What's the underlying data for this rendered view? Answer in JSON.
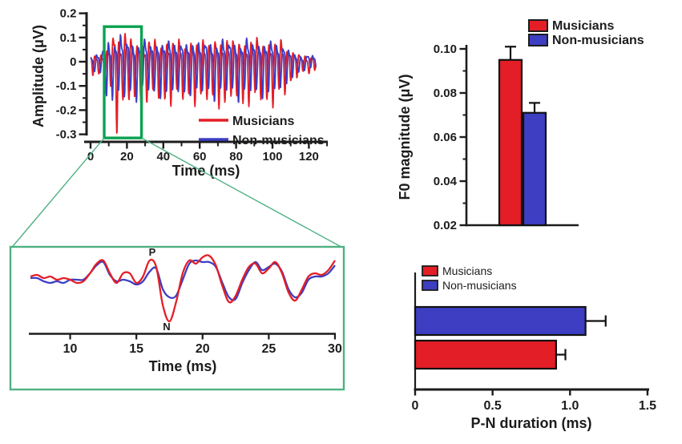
{
  "figure": {
    "background": "#ffffff",
    "description": "Auditory brainstem response figure comparing Musicians and Non-musicians"
  },
  "colors": {
    "musicians": "#e41e26",
    "non_musicians": "#3d3ec2",
    "axis": "#1c1c1c",
    "highlight_green": "#0ba24f",
    "inset_green": "#4eb182"
  },
  "chart_data": [
    {
      "id": "ffr_waveform",
      "type": "line",
      "xlabel": "Time (ms)",
      "ylabel": "Amplitude (μV)",
      "xlim": [
        0,
        130
      ],
      "ylim": [
        -0.3,
        0.2
      ],
      "xticks": {
        "values": [
          0,
          20,
          40,
          60,
          80,
          100,
          120
        ],
        "labels": [
          "0",
          "20",
          "40",
          "60",
          "80",
          "100",
          "120"
        ],
        "minor_values": [
          10,
          30,
          50,
          70,
          90,
          110,
          130
        ]
      },
      "yticks": {
        "values": [
          0.2,
          0.1,
          0,
          -0.1,
          -0.2,
          -0.3
        ],
        "labels": [
          "0.2",
          "0.1",
          "0",
          "-0.1",
          "-0.2",
          "-0.3"
        ],
        "minor_values": [
          0.15,
          0.05,
          -0.05,
          -0.15,
          -0.25
        ]
      },
      "legend": [
        "Musicians",
        "Non-musicians"
      ],
      "legend_position": "inside-bottom-right",
      "highlight_box_ms": {
        "t0": 7.5,
        "t1": 28,
        "v0": -0.315,
        "v1": 0.145
      },
      "sample_step_ms": 0.2,
      "x_end_ms": 124,
      "series": [
        {
          "name": "Musicians",
          "color_key": "musicians",
          "period_ms": 3.3,
          "phase_ms": 2.0,
          "h2": 0.45,
          "neg_bias": 1.3,
          "seed": 1.7,
          "envelope": [
            [
              0,
              0.032
            ],
            [
              6,
              0.038
            ],
            [
              7.5,
              0.05
            ],
            [
              8.5,
              0.07
            ],
            [
              10,
              0.06
            ],
            [
              11.5,
              0.09
            ],
            [
              12.7,
              0.15
            ],
            [
              13.6,
              0.19
            ],
            [
              14.5,
              0.17
            ],
            [
              16,
              0.11
            ],
            [
              17.5,
              0.1
            ],
            [
              19,
              0.14
            ],
            [
              20.5,
              0.13
            ],
            [
              22,
              0.12
            ],
            [
              24,
              0.105
            ],
            [
              28,
              0.1
            ],
            [
              40,
              0.105
            ],
            [
              55,
              0.1
            ],
            [
              70,
              0.11
            ],
            [
              85,
              0.105
            ],
            [
              95,
              0.11
            ],
            [
              103,
              0.1
            ],
            [
              107,
              0.09
            ],
            [
              110,
              0.06
            ],
            [
              113,
              0.04
            ],
            [
              117,
              0.03
            ],
            [
              124,
              0.03
            ]
          ]
        },
        {
          "name": "Non-musicians",
          "color_key": "non_musicians",
          "period_ms": 3.3,
          "phase_ms": 2.85,
          "h2": 0.4,
          "neg_bias": 1.15,
          "seed": 4.2,
          "envelope": [
            [
              0,
              0.03
            ],
            [
              6,
              0.04
            ],
            [
              7.5,
              0.08
            ],
            [
              8.8,
              0.12
            ],
            [
              10,
              0.11
            ],
            [
              11.5,
              0.09
            ],
            [
              13,
              0.1
            ],
            [
              14.5,
              0.11
            ],
            [
              16,
              0.12
            ],
            [
              17.5,
              0.11
            ],
            [
              19,
              0.12
            ],
            [
              20.5,
              0.11
            ],
            [
              22,
              0.1
            ],
            [
              24,
              0.1
            ],
            [
              28,
              0.095
            ],
            [
              40,
              0.1
            ],
            [
              55,
              0.095
            ],
            [
              70,
              0.1
            ],
            [
              85,
              0.1
            ],
            [
              95,
              0.1
            ],
            [
              103,
              0.09
            ],
            [
              107,
              0.08
            ],
            [
              110,
              0.05
            ],
            [
              113,
              0.035
            ],
            [
              117,
              0.028
            ],
            [
              124,
              0.028
            ]
          ]
        }
      ]
    },
    {
      "id": "inset_zoom",
      "type": "line",
      "xlabel": "Time (ms)",
      "xlim": [
        7,
        30
      ],
      "xticks": {
        "values": [
          10,
          15,
          20,
          25,
          30
        ],
        "labels": [
          "10",
          "15",
          "20",
          "25",
          "30"
        ]
      },
      "t_start": 7,
      "t_step": 0.5,
      "annotations": [
        {
          "text": "P",
          "t": 16.2
        },
        {
          "text": "N",
          "t": 17.3
        }
      ],
      "series": [
        {
          "name": "Non-musicians",
          "color_key": "non_musicians",
          "values": [
            -0.01,
            -0.01,
            -0.03,
            -0.04,
            -0.03,
            -0.04,
            -0.02,
            -0.02,
            -0.02,
            0.02,
            0.07,
            0.09,
            0.01,
            -0.03,
            -0.02,
            -0.03,
            -0.05,
            -0.03,
            0.03,
            0.05,
            -0.08,
            -0.13,
            -0.12,
            -0.02,
            0.08,
            0.1,
            0.09,
            0.09,
            0.06,
            -0.04,
            -0.13,
            -0.14,
            -0.04,
            0.04,
            0.09,
            0.04,
            0.06,
            0.08,
            0.03,
            -0.08,
            -0.13,
            -0.1,
            -0.02,
            0.0,
            0.0,
            0.02,
            0.07
          ]
        },
        {
          "name": "Musicians",
          "color_key": "musicians",
          "values": [
            0.0,
            0.01,
            -0.01,
            0.0,
            -0.02,
            -0.01,
            -0.02,
            -0.04,
            -0.03,
            0.02,
            0.08,
            0.1,
            0.02,
            -0.04,
            0.02,
            0.02,
            -0.04,
            0.0,
            0.1,
            0.06,
            -0.18,
            -0.28,
            -0.16,
            0.02,
            0.1,
            0.08,
            0.12,
            0.13,
            0.07,
            -0.06,
            -0.16,
            -0.12,
            -0.02,
            0.06,
            0.08,
            0.02,
            0.05,
            0.09,
            0.02,
            -0.1,
            -0.15,
            -0.08,
            0.0,
            0.02,
            0.01,
            0.04,
            0.1
          ]
        }
      ]
    },
    {
      "id": "f0_magnitude",
      "type": "bar",
      "ylabel": "F0 magnitude (μV)",
      "ylim": [
        0.02,
        0.105
      ],
      "yticks": {
        "values": [
          0.1,
          0.08,
          0.06,
          0.04,
          0.02
        ],
        "labels": [
          "0.10",
          "0.08",
          "0.06",
          "0.04",
          "0.02"
        ],
        "minor_values": [
          0.09,
          0.07,
          0.05,
          0.03
        ]
      },
      "legend": [
        "Musicians",
        "Non-musicians"
      ],
      "legend_position": "top-right",
      "series": [
        {
          "name": "Musicians",
          "color_key": "musicians",
          "value": 0.095,
          "error": 0.006
        },
        {
          "name": "Non-musicians",
          "color_key": "non_musicians",
          "value": 0.071,
          "error": 0.0045
        }
      ]
    },
    {
      "id": "pn_duration",
      "type": "bar-horizontal",
      "xlabel": "P-N duration (ms)",
      "xlim": [
        0,
        1.5
      ],
      "xticks": {
        "values": [
          0,
          0.5,
          1.0,
          1.5
        ],
        "labels": [
          "0",
          "0.5",
          "1.0",
          "1.5"
        ]
      },
      "legend": [
        "Musicians",
        "Non-musicians"
      ],
      "legend_position": "top-left",
      "series": [
        {
          "name": "Non-musicians",
          "color_key": "non_musicians",
          "value": 1.1,
          "error": 0.13
        },
        {
          "name": "Musicians",
          "color_key": "musicians",
          "value": 0.91,
          "error": 0.06
        }
      ]
    }
  ]
}
